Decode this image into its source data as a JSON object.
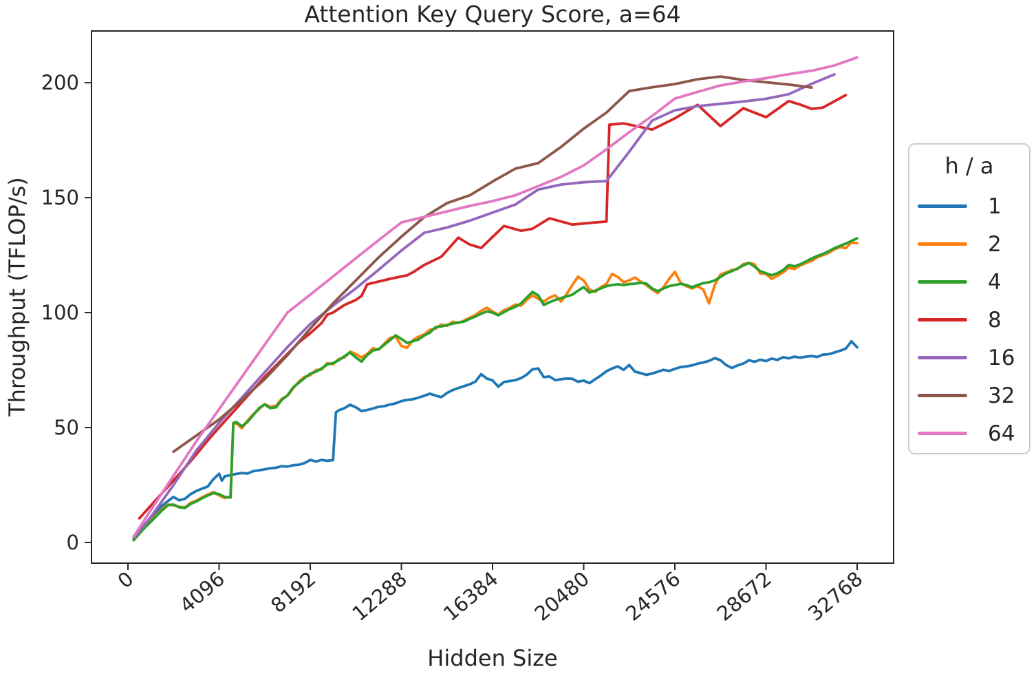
{
  "style": {
    "background": "#ffffff",
    "text_color": "#262626",
    "spine_color": "#262626",
    "legend_border_color": "#cccccc",
    "line_width": 3.8
  },
  "chart_data": {
    "type": "line",
    "title": "Attention Key Query Score, a=64",
    "xlabel": "Hidden Size",
    "ylabel": "Throughput (TFLOP/s)",
    "xlim": [
      -1638,
      34406
    ],
    "ylim": [
      -9,
      222.5
    ],
    "x_ticks": [
      0,
      4096,
      8192,
      12288,
      16384,
      20480,
      24576,
      28672,
      32768
    ],
    "x_tick_labels": [
      "0",
      "4096",
      "8192",
      "12288",
      "16384",
      "20480",
      "24576",
      "28672",
      "32768"
    ],
    "y_ticks": [
      0,
      50,
      100,
      150,
      200
    ],
    "y_tick_labels": [
      "0",
      "50",
      "100",
      "150",
      "200"
    ],
    "grid": false,
    "legend": {
      "title": "h / a",
      "position": "right"
    },
    "series": [
      {
        "label": "1",
        "color": "#1f77b4",
        "x": [
          256,
          512,
          768,
          1024,
          1280,
          1536,
          1792,
          2048,
          2304,
          2560,
          2816,
          3072,
          3328,
          3584,
          3840,
          4096,
          4224,
          4352,
          4608,
          4864,
          5120,
          5376,
          5632,
          5888,
          6144,
          6400,
          6656,
          6912,
          7168,
          7424,
          7680,
          7936,
          8192,
          8448,
          8704,
          8960,
          9216,
          9344,
          9472,
          9728,
          9984,
          10240,
          10496,
          10752,
          11008,
          11264,
          11520,
          11776,
          12032,
          12288,
          12544,
          12800,
          13056,
          13312,
          13568,
          13824,
          14080,
          14336,
          14592,
          14848,
          15104,
          15360,
          15616,
          15872,
          16128,
          16384,
          16640,
          16896,
          17152,
          17408,
          17664,
          17920,
          18176,
          18432,
          18688,
          18944,
          19200,
          19456,
          19712,
          19968,
          20224,
          20480,
          20736,
          20992,
          21248,
          21504,
          21760,
          22016,
          22272,
          22528,
          22784,
          23040,
          23296,
          23552,
          23808,
          24064,
          24320,
          24576,
          24832,
          25088,
          25344,
          25600,
          25856,
          26112,
          26368,
          26624,
          26880,
          27136,
          27392,
          27648,
          27904,
          28160,
          28416,
          28672,
          28928,
          29184,
          29440,
          29696,
          29952,
          30208,
          30464,
          30720,
          30976,
          31232,
          31488,
          31744,
          32000,
          32256,
          32512,
          32768
        ],
        "y": [
          1.5,
          4,
          7,
          10.5,
          13.5,
          16,
          18,
          19.8,
          18.3,
          19,
          21,
          22.4,
          23.4,
          24.3,
          27.5,
          29.9,
          26.9,
          28.8,
          29.3,
          29.8,
          30.2,
          30,
          31,
          31.4,
          31.8,
          32.3,
          32.5,
          33.2,
          33,
          33.6,
          33.8,
          34.5,
          35.9,
          35.2,
          35.9,
          35.5,
          35.8,
          56.6,
          57.5,
          58.4,
          59.9,
          58.8,
          57.2,
          57.6,
          58.3,
          59,
          59.3,
          60,
          60.5,
          61.5,
          62,
          62.3,
          63,
          63.8,
          64.7,
          63.9,
          63.2,
          65,
          66.3,
          67.2,
          68,
          68.8,
          70,
          73.2,
          71.3,
          70.5,
          67.8,
          69.8,
          70.2,
          70.6,
          71.5,
          73,
          75.3,
          75.7,
          71.9,
          72.2,
          70.6,
          71,
          71.3,
          71.2,
          69.9,
          70.4,
          69.3,
          71,
          72.6,
          74.5,
          75.7,
          76.6,
          75.1,
          77.2,
          74.3,
          73.7,
          72.9,
          73.5,
          74.3,
          75.1,
          74.6,
          75.5,
          76.3,
          76.6,
          77,
          77.8,
          78.3,
          79,
          80.2,
          79.3,
          77.2,
          75.9,
          77,
          77.8,
          79.3,
          78.6,
          79.5,
          78.9,
          80,
          79.4,
          80.6,
          80.1,
          80.8,
          80.4,
          80.8,
          81.1,
          80.7,
          81.7,
          81.9,
          82.6,
          83.4,
          84.3,
          87.5,
          84.9
        ]
      },
      {
        "label": "2",
        "color": "#ff7f0e",
        "x": [
          256,
          512,
          768,
          1024,
          1280,
          1536,
          1792,
          2048,
          2304,
          2560,
          2816,
          3072,
          3328,
          3584,
          3840,
          4096,
          4352,
          4608,
          4736,
          4864,
          5120,
          5376,
          5632,
          5888,
          6144,
          6400,
          6656,
          6912,
          7168,
          7424,
          7680,
          7936,
          8192,
          8448,
          8704,
          8960,
          9216,
          9472,
          9728,
          9984,
          10240,
          10496,
          10752,
          11008,
          11264,
          11520,
          11776,
          12032,
          12288,
          12544,
          12800,
          13056,
          13312,
          13568,
          13824,
          14080,
          14336,
          14592,
          14848,
          15104,
          15360,
          15616,
          15872,
          16128,
          16384,
          16640,
          16896,
          17152,
          17408,
          17664,
          17920,
          18176,
          18432,
          18688,
          18944,
          19200,
          19456,
          19712,
          19968,
          20224,
          20480,
          20736,
          20992,
          21248,
          21504,
          21760,
          22016,
          22272,
          22528,
          22784,
          23040,
          23296,
          23552,
          23808,
          24064,
          24320,
          24576,
          24832,
          25088,
          25344,
          25600,
          25856,
          26112,
          26368,
          26624,
          26880,
          27136,
          27392,
          27648,
          27904,
          28160,
          28416,
          28672,
          28928,
          29184,
          29440,
          29696,
          29952,
          30208,
          30464,
          30720,
          30976,
          31232,
          31488,
          31744,
          32000,
          32256,
          32512,
          32768
        ],
        "y": [
          1,
          3.8,
          6.8,
          9.3,
          12,
          14.5,
          16.5,
          16.2,
          15.6,
          15.2,
          17.2,
          18.2,
          19.6,
          20.8,
          21.9,
          20.5,
          19.3,
          20,
          51.5,
          52,
          49.7,
          53,
          55.8,
          58,
          60.2,
          59,
          59.5,
          62.5,
          63.8,
          67,
          70,
          72,
          72.8,
          75,
          75.2,
          78,
          77.5,
          79.8,
          80.5,
          83,
          82,
          80.5,
          82,
          84.5,
          83.8,
          86.5,
          89,
          89.5,
          85.5,
          84.7,
          88,
          89.5,
          90.5,
          92.5,
          93,
          94.8,
          94.2,
          96,
          95.5,
          96.5,
          97.8,
          99,
          100.8,
          102.1,
          100.5,
          99.1,
          101,
          102,
          103.5,
          103,
          105.5,
          107.5,
          106,
          104.8,
          106.5,
          107.5,
          104.8,
          108,
          112,
          115.6,
          114,
          110,
          109,
          111,
          112.5,
          116.8,
          115.5,
          113.2,
          114,
          115.3,
          113.5,
          112,
          110,
          108.5,
          111,
          114.7,
          117.7,
          113,
          111.5,
          110.5,
          111.5,
          110,
          104,
          112,
          116.5,
          117.5,
          118.5,
          119,
          121,
          121.6,
          121,
          117,
          116.8,
          114.7,
          116,
          117.5,
          119.5,
          119,
          120.5,
          121.5,
          122.5,
          124,
          125,
          126,
          127.5,
          128.5,
          128,
          130.5,
          130.2
        ]
      },
      {
        "label": "4",
        "color": "#2ca02c",
        "x": [
          256,
          512,
          768,
          1024,
          1280,
          1536,
          1792,
          2048,
          2304,
          2560,
          2816,
          3072,
          3328,
          3584,
          3840,
          4096,
          4352,
          4608,
          4736,
          4864,
          5120,
          5376,
          5632,
          5888,
          6144,
          6400,
          6656,
          6912,
          7168,
          7424,
          7680,
          7936,
          8192,
          8448,
          8704,
          8960,
          9216,
          9472,
          9728,
          9984,
          10240,
          10496,
          10752,
          11008,
          11264,
          11520,
          11776,
          12032,
          12288,
          12544,
          12800,
          13056,
          13312,
          13568,
          13824,
          14080,
          14336,
          14592,
          14848,
          15104,
          15360,
          15616,
          15872,
          16128,
          16384,
          16640,
          16896,
          17152,
          17408,
          17664,
          17920,
          18176,
          18432,
          18688,
          18944,
          19200,
          19456,
          19712,
          19968,
          20224,
          20480,
          20736,
          20992,
          21248,
          21504,
          21760,
          22016,
          22272,
          22528,
          22784,
          23040,
          23296,
          23552,
          23808,
          24064,
          24320,
          24576,
          24832,
          25088,
          25344,
          25600,
          25856,
          26112,
          26368,
          26624,
          26880,
          27136,
          27392,
          27648,
          27904,
          28160,
          28416,
          28672,
          28928,
          29184,
          29440,
          29696,
          29952,
          30208,
          30464,
          30720,
          30976,
          31232,
          31488,
          31744,
          32000,
          32256,
          32512,
          32768
        ],
        "y": [
          1,
          4,
          6.5,
          9,
          11.5,
          14,
          16.2,
          16.5,
          15.3,
          15,
          16.8,
          17.8,
          19.2,
          20.4,
          21.5,
          21,
          19.8,
          19.5,
          52,
          52.4,
          50.5,
          52.5,
          55.4,
          58.4,
          60,
          58.4,
          58.8,
          62,
          64,
          67.4,
          69.5,
          71.5,
          73.4,
          74.3,
          75.7,
          77.5,
          78,
          79.3,
          81,
          82.6,
          80.5,
          78.7,
          81.5,
          83.5,
          84.1,
          86,
          88,
          90.1,
          88.5,
          86.8,
          87.5,
          88.3,
          90,
          91.3,
          93.7,
          94,
          94.6,
          95.2,
          95.7,
          96.1,
          97.3,
          98.3,
          99.5,
          100.5,
          100,
          98.8,
          100.2,
          101.5,
          102.5,
          104,
          106.5,
          109,
          107.5,
          103.3,
          104.5,
          105.5,
          106.3,
          107,
          107.8,
          109.5,
          111.1,
          108.7,
          109.5,
          110.5,
          111.5,
          112,
          112.3,
          112,
          112.4,
          112.6,
          113,
          112.6,
          110.5,
          109.3,
          110.5,
          111.5,
          112,
          112.5,
          112,
          111,
          112,
          112.8,
          113.2,
          114,
          115.5,
          117,
          118,
          119.2,
          120.5,
          121.6,
          120,
          118,
          117.1,
          116.2,
          117.1,
          118.5,
          120.7,
          120.1,
          121,
          122.2,
          123.5,
          124.6,
          125.5,
          126.7,
          128,
          129,
          130,
          131.2,
          132.3
        ]
      },
      {
        "label": "8",
        "color": "#d62728",
        "x": [
          512,
          1024,
          1536,
          2048,
          2560,
          3072,
          3584,
          4096,
          4608,
          5120,
          5632,
          6144,
          6656,
          7168,
          7680,
          8192,
          8704,
          8960,
          9216,
          9728,
          10240,
          10496,
          10752,
          11264,
          11776,
          12544,
          12800,
          13312,
          14080,
          14848,
          15360,
          15872,
          16896,
          17664,
          18176,
          18944,
          19968,
          20992,
          21504,
          21632,
          22272,
          23552,
          24576,
          25600,
          26624,
          27648,
          28672,
          29696,
          30208,
          30720,
          31232,
          32256
        ],
        "y": [
          10.5,
          16,
          21.5,
          27,
          32.5,
          38.3,
          44.3,
          50,
          55.5,
          61,
          66.5,
          72,
          77,
          82,
          87,
          91,
          95.5,
          99.1,
          100,
          103.3,
          105.5,
          107.2,
          112.3,
          113.5,
          114.7,
          116.2,
          117.5,
          120.7,
          124.3,
          132.6,
          129.6,
          128.1,
          137.7,
          135.6,
          136.5,
          141,
          138.3,
          139.2,
          139.6,
          181.7,
          182.3,
          179.6,
          184.5,
          190.4,
          181.1,
          188.9,
          185,
          192,
          190.5,
          188.6,
          189.2,
          194.6
        ]
      },
      {
        "label": "16",
        "color": "#9467bd",
        "x": [
          256,
          1024,
          2048,
          3072,
          4096,
          5120,
          6144,
          7168,
          8192,
          9216,
          10240,
          11264,
          12288,
          13312,
          14336,
          15360,
          16384,
          17408,
          18432,
          19456,
          20480,
          21504,
          22528,
          23552,
          24576,
          25600,
          26624,
          27648,
          28672,
          29696,
          30720,
          31744
        ],
        "y": [
          2,
          11,
          25,
          40,
          52,
          63,
          74,
          85,
          95,
          103,
          110.5,
          118.6,
          127,
          134.7,
          137,
          140,
          143.5,
          147,
          153.5,
          155.7,
          156.7,
          157.2,
          170,
          183.5,
          188,
          189.8,
          190.8,
          191.8,
          193,
          195,
          199.5,
          203.6
        ]
      },
      {
        "label": "32",
        "color": "#8c564b",
        "x": [
          2048,
          3072,
          4096,
          5120,
          6144,
          7168,
          8192,
          9216,
          10240,
          11264,
          12288,
          13312,
          14336,
          15360,
          16384,
          17408,
          18432,
          19456,
          20480,
          21504,
          22528,
          23552,
          24576,
          25600,
          26624,
          27648,
          28672,
          29696,
          30720
        ],
        "y": [
          39.5,
          46.5,
          53.5,
          62,
          71,
          81.5,
          93,
          104,
          114,
          124,
          133,
          141.5,
          147.6,
          151,
          157,
          162.6,
          165,
          172,
          180,
          187,
          196.4,
          198,
          199.4,
          201.5,
          202.7,
          201.2,
          200.2,
          199.2,
          197.9
        ]
      },
      {
        "label": "64",
        "color": "#e377c2",
        "x": [
          256,
          1024,
          2048,
          3072,
          4096,
          5120,
          6144,
          7168,
          8192,
          9216,
          10240,
          11264,
          12288,
          13312,
          14336,
          15360,
          16384,
          17408,
          18432,
          19456,
          20480,
          21504,
          22528,
          23552,
          24576,
          25600,
          26624,
          27648,
          28672,
          29696,
          30720,
          31744,
          32768
        ],
        "y": [
          2.5,
          14,
          29,
          44,
          58,
          72,
          86,
          100,
          107.8,
          115.7,
          123.6,
          131.5,
          139.2,
          141.6,
          144,
          146.4,
          148.5,
          151,
          155,
          159,
          164,
          171,
          178.5,
          185.5,
          193.1,
          196,
          198.8,
          200.5,
          202,
          203.7,
          205.2,
          207.5,
          211
        ]
      }
    ]
  }
}
